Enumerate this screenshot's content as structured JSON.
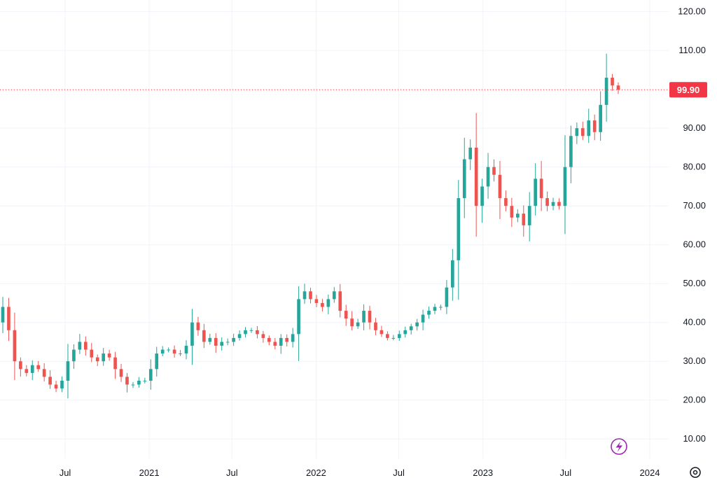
{
  "colors": {
    "up": "#26a69a",
    "down": "#ef5350",
    "grid": "#f0f3fa",
    "last_price": "#f23645",
    "icon": "#9c27b0",
    "text": "#131722"
  },
  "icons": {
    "lightning": "lightning-icon",
    "settings": "gear-icon"
  },
  "chart_data": {
    "type": "candlestick",
    "grid": true,
    "ylim": [
      5,
      123
    ],
    "y_ticks": [
      "120.00",
      "110.00",
      "100.00",
      "90.00",
      "80.00",
      "70.00",
      "60.00",
      "50.00",
      "40.00",
      "30.00",
      "20.00",
      "10.00"
    ],
    "x_ticks": [
      {
        "label": "Jul",
        "date": "2020-07-01"
      },
      {
        "label": "2021",
        "date": "2021-01-01"
      },
      {
        "label": "Jul",
        "date": "2021-07-01"
      },
      {
        "label": "2022",
        "date": "2022-01-01"
      },
      {
        "label": "Jul",
        "date": "2022-07-01"
      },
      {
        "label": "2023",
        "date": "2023-01-01"
      },
      {
        "label": "Jul",
        "date": "2023-07-01"
      },
      {
        "label": "2024",
        "date": "2024-01-01"
      }
    ],
    "last_price": 99.9,
    "last_price_label": "99.90",
    "closes": [
      44,
      38,
      30,
      28,
      27,
      29,
      28,
      26,
      24,
      23,
      25,
      30,
      33,
      35,
      33,
      31,
      30,
      32,
      31,
      28,
      26,
      24,
      24,
      25,
      25,
      28,
      32,
      33,
      33,
      32,
      32,
      34,
      40,
      38,
      35,
      36,
      34,
      35,
      35,
      36,
      37,
      38,
      38,
      37,
      36,
      35,
      34,
      36,
      35,
      37,
      46,
      48,
      46,
      45,
      44,
      46,
      48,
      43,
      41,
      39,
      40,
      43,
      40,
      38,
      37,
      36,
      36,
      37,
      38,
      39,
      40,
      42,
      43,
      44,
      44,
      49,
      56,
      72,
      82,
      85,
      70,
      75,
      80,
      78,
      72,
      70,
      67,
      68,
      65,
      70,
      77,
      72,
      70,
      71,
      70,
      80,
      88,
      90,
      88,
      92,
      89,
      96,
      103,
      101,
      99.9
    ]
  }
}
